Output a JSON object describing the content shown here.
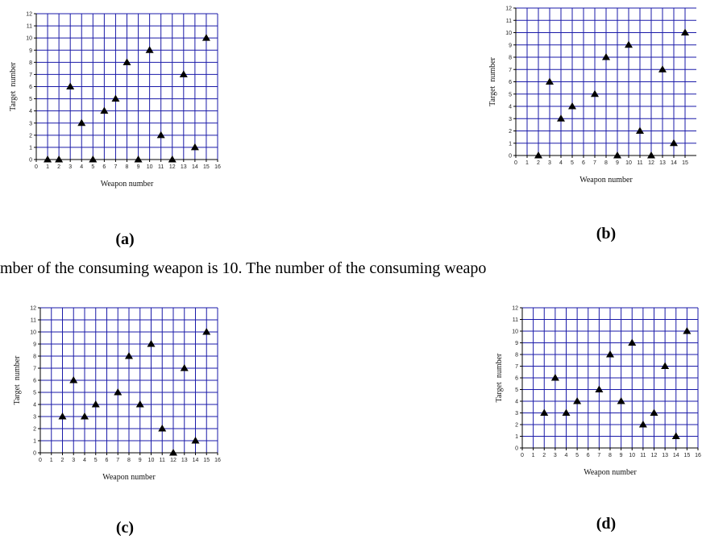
{
  "caption": "mber of the consuming weapon is 10. The number of the consuming weapo",
  "chart_data": [
    {
      "type": "scatter",
      "panel_label": "(a)",
      "x_label": "Weapon number",
      "y_label": "Target  number",
      "color": "#000000",
      "grid": true,
      "x": [
        1,
        2,
        3,
        4,
        5,
        6,
        7,
        8,
        9,
        10,
        11,
        12,
        13,
        14,
        15
      ],
      "values": [
        0,
        0,
        6,
        3,
        0,
        4,
        5,
        8,
        0,
        9,
        2,
        0,
        7,
        1,
        10
      ],
      "xlim": [
        0,
        16
      ],
      "ylim": [
        0,
        12
      ],
      "xticks": [
        0,
        1,
        2,
        3,
        4,
        5,
        6,
        7,
        8,
        9,
        10,
        11,
        12,
        13,
        14,
        15,
        16
      ],
      "yticks": [
        0,
        1,
        2,
        3,
        4,
        5,
        6,
        7,
        8,
        9,
        10,
        11,
        12
      ]
    },
    {
      "type": "scatter",
      "panel_label": "(b)",
      "x_label": "Weapon number",
      "y_label": "Target  number",
      "color": "#000000",
      "grid": true,
      "x": [
        2,
        3,
        4,
        5,
        7,
        8,
        9,
        10,
        11,
        12,
        13,
        14,
        15
      ],
      "values": [
        0,
        6,
        3,
        4,
        5,
        8,
        0,
        9,
        2,
        0,
        7,
        1,
        10
      ],
      "xlim": [
        0,
        16
      ],
      "ylim": [
        0,
        12
      ],
      "xticks": [
        0,
        1,
        2,
        3,
        4,
        5,
        6,
        7,
        8,
        9,
        10,
        11,
        12,
        13,
        14,
        15
      ],
      "yticks": [
        0,
        1,
        2,
        3,
        4,
        5,
        6,
        7,
        8,
        9,
        10,
        11,
        12
      ]
    },
    {
      "type": "scatter",
      "panel_label": "(c)",
      "x_label": "Weapon number",
      "y_label": "Target  number",
      "color": "#000000",
      "grid": true,
      "x": [
        2,
        3,
        4,
        5,
        7,
        8,
        9,
        10,
        11,
        12,
        13,
        14,
        15
      ],
      "values": [
        3,
        6,
        3,
        4,
        5,
        8,
        4,
        9,
        2,
        0,
        7,
        1,
        10
      ],
      "xlim": [
        0,
        16
      ],
      "ylim": [
        0,
        12
      ],
      "xticks": [
        0,
        1,
        2,
        3,
        4,
        5,
        6,
        7,
        8,
        9,
        10,
        11,
        12,
        13,
        14,
        15,
        16
      ],
      "yticks": [
        0,
        1,
        2,
        3,
        4,
        5,
        6,
        7,
        8,
        9,
        10,
        11,
        12
      ]
    },
    {
      "type": "scatter",
      "panel_label": "(d)",
      "x_label": "Weapon number",
      "y_label": "Target  number",
      "color": "#000000",
      "grid": true,
      "x": [
        2,
        3,
        4,
        5,
        7,
        8,
        9,
        10,
        11,
        12,
        13,
        14,
        15
      ],
      "values": [
        3,
        6,
        3,
        4,
        5,
        8,
        4,
        9,
        2,
        3,
        7,
        1,
        10
      ],
      "xlim": [
        0,
        16
      ],
      "ylim": [
        0,
        12
      ],
      "xticks": [
        0,
        1,
        2,
        3,
        4,
        5,
        6,
        7,
        8,
        9,
        10,
        11,
        12,
        13,
        14,
        15,
        16
      ],
      "yticks": [
        0,
        1,
        2,
        3,
        4,
        5,
        6,
        7,
        8,
        9,
        10,
        11,
        12
      ]
    }
  ]
}
